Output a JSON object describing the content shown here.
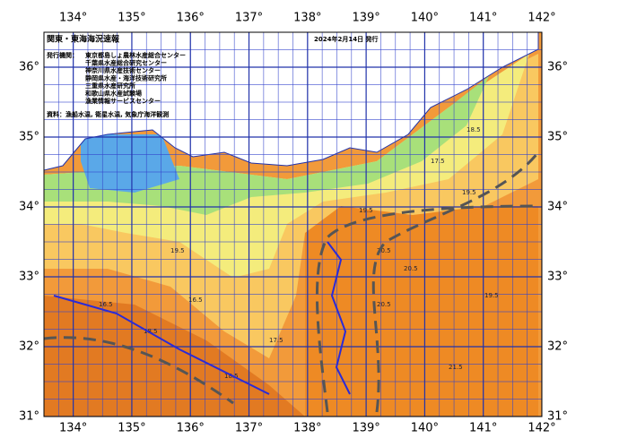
{
  "header": {
    "title": "関東・東海海況速報",
    "date": "2024年2月14日 発行"
  },
  "issuers": {
    "label": "発行機関：",
    "items": [
      "東京都島しょ農林水産総合センター",
      "千葉県水産総合研究センター",
      "神奈川県水産技術センター",
      "静岡県水産・海洋技術研究所",
      "三重県水産研究所",
      "和歌山県水産試験場",
      "漁業情報サービスセンター"
    ]
  },
  "sources": "資料：漁船水温, 衛星水温, 気象庁海洋観測",
  "map": {
    "lon_range": [
      133.5,
      142
    ],
    "lat_range": [
      31,
      36.5
    ],
    "lon_ticks": [
      {
        "value": 134,
        "label": "134°"
      },
      {
        "value": 135,
        "label": "135°"
      },
      {
        "value": 136,
        "label": "136°"
      },
      {
        "value": 137,
        "label": "137°"
      },
      {
        "value": 138,
        "label": "138°"
      },
      {
        "value": 139,
        "label": "139°"
      },
      {
        "value": 140,
        "label": "140°"
      },
      {
        "value": 141,
        "label": "141°"
      },
      {
        "value": 142,
        "label": "142°"
      }
    ],
    "lat_ticks": [
      {
        "value": 36,
        "label": "36°"
      },
      {
        "value": 35,
        "label": "35°"
      },
      {
        "value": 34,
        "label": "34°"
      },
      {
        "value": 33,
        "label": "33°"
      },
      {
        "value": 32,
        "label": "32°"
      },
      {
        "value": 31,
        "label": "31°"
      }
    ],
    "isotherm_labels": [
      "18.5",
      "19.5",
      "17.5",
      "16.5",
      "20.5",
      "19.5",
      "21.5",
      "18.5",
      "16.5",
      "19.5",
      "20.5",
      "17.5",
      "18.5",
      "19.5",
      "20.5"
    ]
  }
}
